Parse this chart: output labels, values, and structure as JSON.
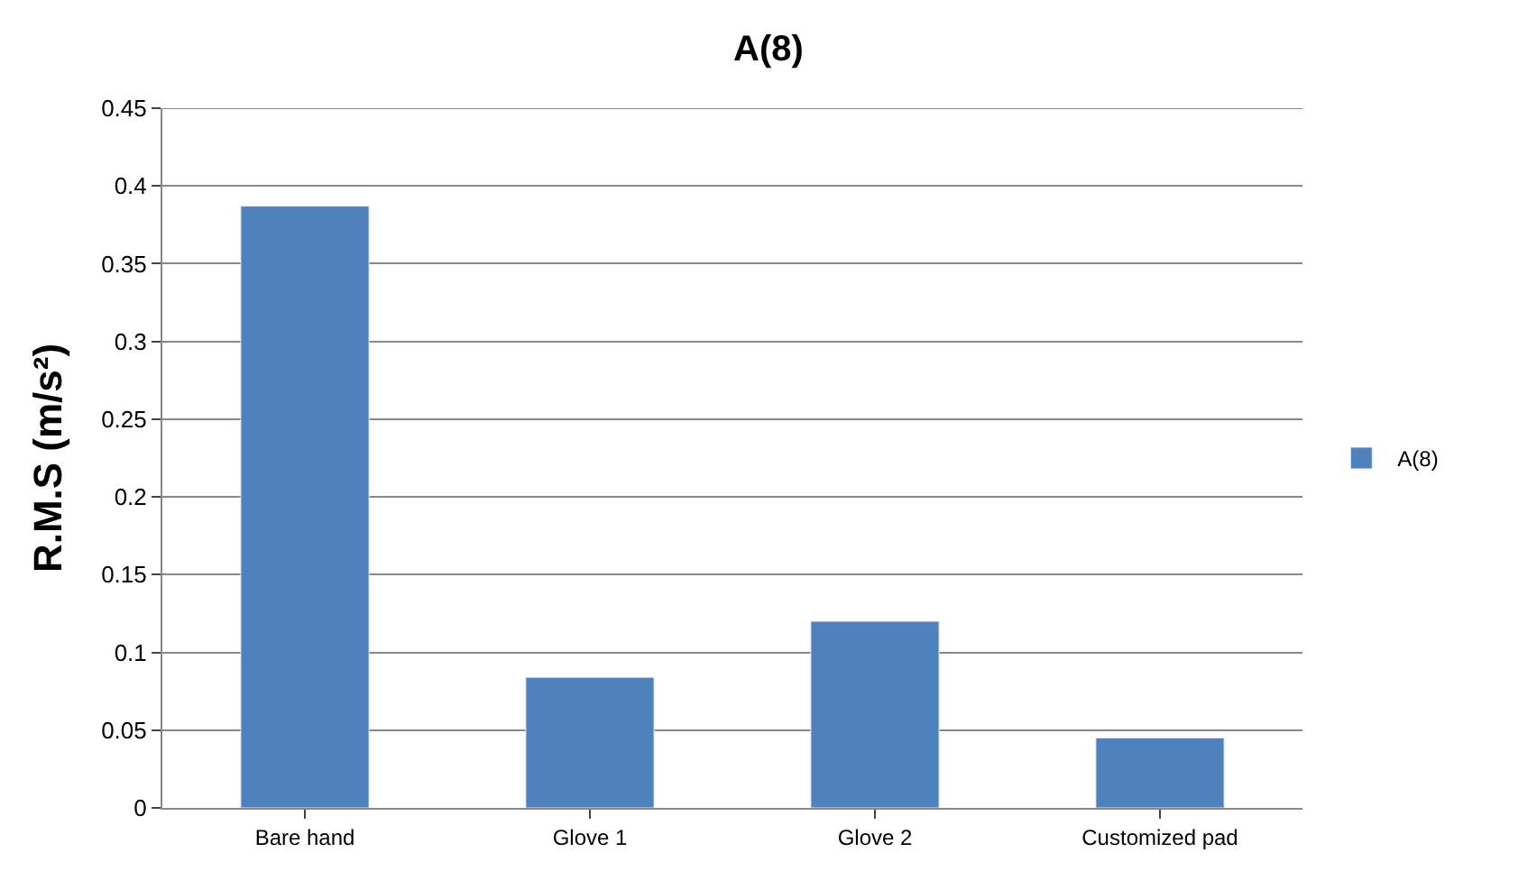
{
  "chart_data": {
    "type": "bar",
    "title": "A(8)",
    "ylabel": "R.M.S (m/s²)",
    "categories": [
      "Bare hand",
      "Glove 1",
      "Glove 2",
      "Customized pad"
    ],
    "series": [
      {
        "name": "A(8)",
        "color": "#4f81bd",
        "values": [
          0.387,
          0.084,
          0.12,
          0.045
        ]
      }
    ],
    "ylim": [
      0,
      0.45
    ],
    "yticks": [
      0,
      0.05,
      0.1,
      0.15,
      0.2,
      0.25,
      0.3,
      0.35,
      0.4,
      0.45
    ],
    "grid": "y",
    "legend": "right"
  }
}
